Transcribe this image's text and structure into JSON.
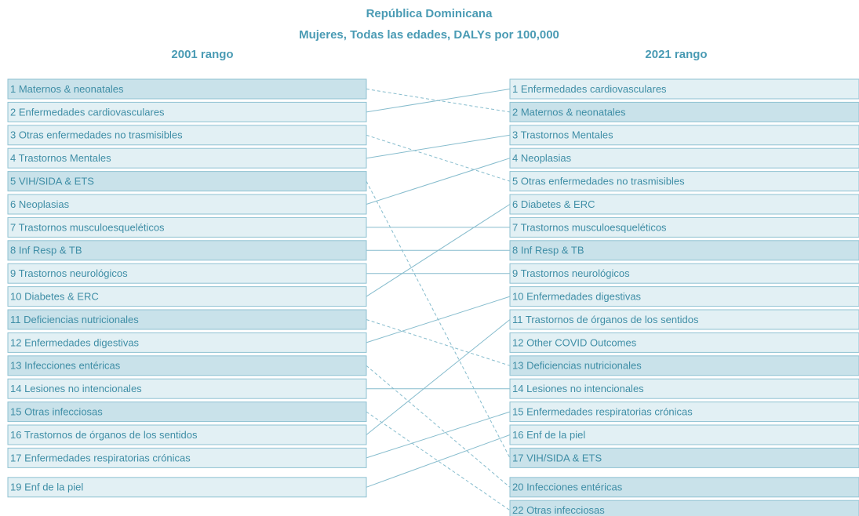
{
  "header": {
    "title": "República Dominicana",
    "subtitle": "Mujeres, Todas las edades, DALYs por 100,000",
    "left_heading": "2001 rango",
    "right_heading": "2021 rango"
  },
  "left": [
    {
      "label": "1 Maternos & neonatales",
      "color": "#c9e2ea"
    },
    {
      "label": "2 Enfermedades cardiovasculares",
      "color": "#e2f0f4"
    },
    {
      "label": "3 Otras enfermedades no trasmisibles",
      "color": "#e2f0f4"
    },
    {
      "label": "4 Trastornos Mentales",
      "color": "#e2f0f4"
    },
    {
      "label": "5 VIH/SIDA & ETS",
      "color": "#c9e2ea"
    },
    {
      "label": "6 Neoplasias",
      "color": "#e2f0f4"
    },
    {
      "label": "7 Trastornos musculoesqueléticos",
      "color": "#e2f0f4"
    },
    {
      "label": "8 Inf Resp & TB",
      "color": "#c9e2ea"
    },
    {
      "label": "9 Trastornos neurológicos",
      "color": "#e2f0f4"
    },
    {
      "label": "10 Diabetes & ERC",
      "color": "#e2f0f4"
    },
    {
      "label": "11 Deficiencias nutricionales",
      "color": "#c9e2ea"
    },
    {
      "label": "12 Enfermedades digestivas",
      "color": "#e2f0f4"
    },
    {
      "label": "13 Infecciones entéricas",
      "color": "#c9e2ea"
    },
    {
      "label": "14 Lesiones no intencionales",
      "color": "#e2f0f4"
    },
    {
      "label": "15 Otras infecciosas",
      "color": "#c9e2ea"
    },
    {
      "label": "16 Trastornos de órganos de los sentidos",
      "color": "#e2f0f4"
    },
    {
      "label": "17 Enfermedades respiratorias crónicas",
      "color": "#e2f0f4"
    },
    {
      "label": "19 Enf de la piel",
      "color": "#e2f0f4"
    }
  ],
  "right": [
    {
      "label": "1 Enfermedades cardiovasculares",
      "color": "#e2f0f4"
    },
    {
      "label": "2 Maternos & neonatales",
      "color": "#c9e2ea"
    },
    {
      "label": "3 Trastornos Mentales",
      "color": "#e2f0f4"
    },
    {
      "label": "4 Neoplasias",
      "color": "#e2f0f4"
    },
    {
      "label": "5 Otras enfermedades no trasmisibles",
      "color": "#e2f0f4"
    },
    {
      "label": "6 Diabetes & ERC",
      "color": "#e2f0f4"
    },
    {
      "label": "7 Trastornos musculoesqueléticos",
      "color": "#e2f0f4"
    },
    {
      "label": "8 Inf Resp & TB",
      "color": "#c9e2ea"
    },
    {
      "label": "9 Trastornos neurológicos",
      "color": "#e2f0f4"
    },
    {
      "label": "10 Enfermedades digestivas",
      "color": "#e2f0f4"
    },
    {
      "label": "11 Trastornos de órganos de los sentidos",
      "color": "#e2f0f4"
    },
    {
      "label": "12 Other COVID Outcomes",
      "color": "#e2f0f4"
    },
    {
      "label": "13 Deficiencias nutricionales",
      "color": "#c9e2ea"
    },
    {
      "label": "14 Lesiones no intencionales",
      "color": "#e2f0f4"
    },
    {
      "label": "15 Enfermedades respiratorias crónicas",
      "color": "#e2f0f4"
    },
    {
      "label": "16 Enf de la piel",
      "color": "#e2f0f4"
    },
    {
      "label": "17 VIH/SIDA & ETS",
      "color": "#c9e2ea"
    },
    {
      "label": "20 Infecciones entéricas",
      "color": "#c9e2ea"
    },
    {
      "label": "22 Otras infecciosas",
      "color": "#c9e2ea"
    }
  ]
}
